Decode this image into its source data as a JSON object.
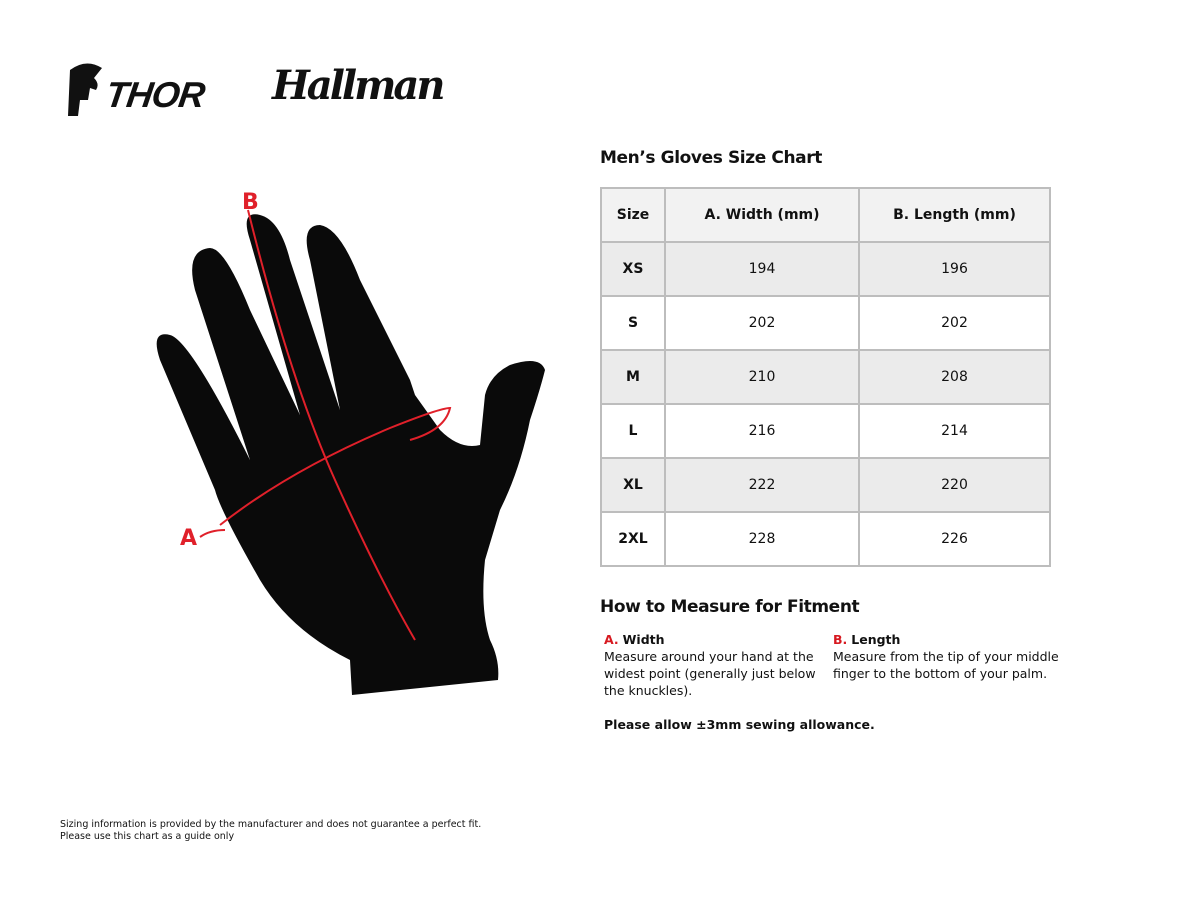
{
  "brands": {
    "thor": "THOR",
    "hallman": "Hallman"
  },
  "diagram": {
    "label_a": "A",
    "label_b": "B",
    "accent": "#e0202a"
  },
  "chart": {
    "title": "Men’s Gloves Size Chart",
    "headers": [
      "Size",
      "A. Width (mm)",
      "B. Length (mm)"
    ],
    "rows": [
      [
        "XS",
        "194",
        "196"
      ],
      [
        "S",
        "202",
        "202"
      ],
      [
        "M",
        "210",
        "208"
      ],
      [
        "L",
        "216",
        "214"
      ],
      [
        "XL",
        "222",
        "220"
      ],
      [
        "2XL",
        "228",
        "226"
      ]
    ]
  },
  "measure": {
    "title": "How to Measure for Fitment",
    "width": {
      "letter": "A.",
      "label": "Width",
      "text": "Measure around your hand at the widest point (generally just below the knuckles)."
    },
    "length": {
      "letter": "B.",
      "label": "Length",
      "text": "Measure from the tip of your middle finger to the bottom of your palm."
    },
    "allowance": "Please allow ±3mm sewing allowance."
  },
  "disclaimer": {
    "line1": "Sizing information is provided by the manufacturer and does not guarantee a perfect fit.",
    "line2": "Please use this chart as a guide only"
  }
}
